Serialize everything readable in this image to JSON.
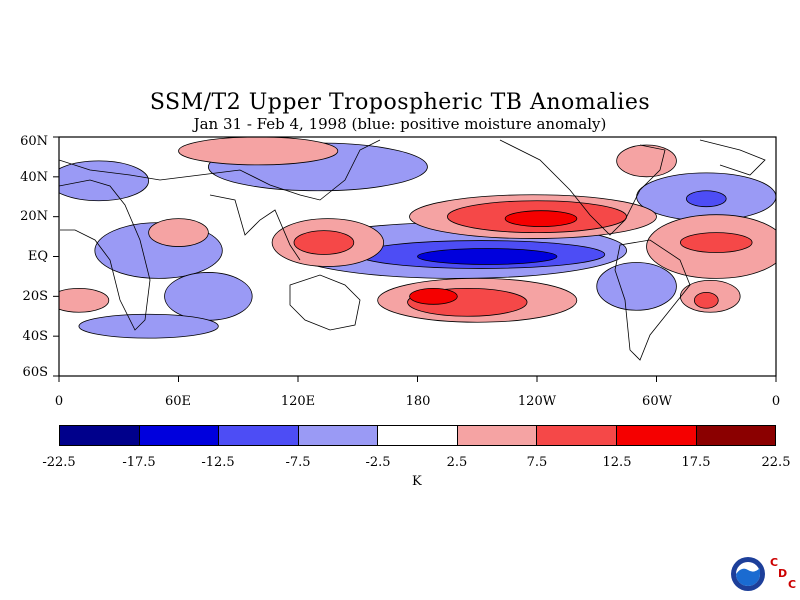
{
  "title": "SSM/T2 Upper Tropospheric TB Anomalies",
  "subtitle": "Jan 31 - Feb 4, 1998 (blue: positive moisture anomaly)",
  "lat_labels": [
    "60N",
    "40N",
    "20N",
    "EQ",
    "20S",
    "40S",
    "60S"
  ],
  "lon_labels": [
    "0",
    "60E",
    "120E",
    "180",
    "120W",
    "60W",
    "0"
  ],
  "colorbar": {
    "labels": [
      "-22.5",
      "-17.5",
      "-12.5",
      "-7.5",
      "-2.5",
      "2.5",
      "7.5",
      "12.5",
      "17.5",
      "22.5"
    ],
    "colors": [
      "#00008b",
      "#0000dd",
      "#4d4df5",
      "#9a9af5",
      "#ffffff",
      "#f5a3a3",
      "#f54848",
      "#f50000",
      "#8b0000"
    ],
    "unit": "K"
  },
  "logo": {
    "icon": "noaa-icon",
    "letters": [
      "C",
      "D",
      "C"
    ]
  },
  "map_regions": [
    {
      "value": -7.5,
      "lon": 200,
      "lat": 3,
      "dlon": 85,
      "dlat": 14
    },
    {
      "value": -12.5,
      "lon": 212,
      "lat": 1,
      "dlon": 62,
      "dlat": 7
    },
    {
      "value": -17.5,
      "lon": 215,
      "lat": 0,
      "dlon": 35,
      "dlat": 4
    },
    {
      "value": -7.5,
      "lon": 50,
      "lat": 3,
      "dlon": 32,
      "dlat": 14
    },
    {
      "value": -7.5,
      "lon": 20,
      "lat": 38,
      "dlon": 25,
      "dlat": 10
    },
    {
      "value": -7.5,
      "lon": 130,
      "lat": 45,
      "dlon": 55,
      "dlat": 12
    },
    {
      "value": -7.5,
      "lon": 75,
      "lat": -20,
      "dlon": 22,
      "dlat": 12
    },
    {
      "value": -7.5,
      "lon": 290,
      "lat": -15,
      "dlon": 20,
      "dlat": 12
    },
    {
      "value": -7.5,
      "lon": 325,
      "lat": 30,
      "dlon": 35,
      "dlat": 12
    },
    {
      "value": -12.5,
      "lon": 325,
      "lat": 29,
      "dlon": 10,
      "dlat": 4
    },
    {
      "value": -7.5,
      "lon": 45,
      "lat": -35,
      "dlon": 35,
      "dlat": 6
    },
    {
      "value": 2.5,
      "lon": 238,
      "lat": 20,
      "dlon": 62,
      "dlat": 11
    },
    {
      "value": 7.5,
      "lon": 240,
      "lat": 20,
      "dlon": 45,
      "dlat": 8
    },
    {
      "value": 12.5,
      "lon": 242,
      "lat": 19,
      "dlon": 18,
      "dlat": 4
    },
    {
      "value": 2.5,
      "lon": 135,
      "lat": 7,
      "dlon": 28,
      "dlat": 12
    },
    {
      "value": 7.5,
      "lon": 133,
      "lat": 7,
      "dlon": 15,
      "dlat": 6
    },
    {
      "value": 2.5,
      "lon": 210,
      "lat": -22,
      "dlon": 50,
      "dlat": 11
    },
    {
      "value": 7.5,
      "lon": 205,
      "lat": -23,
      "dlon": 30,
      "dlat": 7
    },
    {
      "value": 12.5,
      "lon": 188,
      "lat": -20,
      "dlon": 12,
      "dlat": 4
    },
    {
      "value": 2.5,
      "lon": 330,
      "lat": 5,
      "dlon": 35,
      "dlat": 16
    },
    {
      "value": 7.5,
      "lon": 330,
      "lat": 7,
      "dlon": 18,
      "dlat": 5
    },
    {
      "value": 2.5,
      "lon": 327,
      "lat": -20,
      "dlon": 15,
      "dlat": 8
    },
    {
      "value": 7.5,
      "lon": 325,
      "lat": -22,
      "dlon": 6,
      "dlat": 4
    },
    {
      "value": 2.5,
      "lon": 100,
      "lat": 53,
      "dlon": 40,
      "dlat": 7
    },
    {
      "value": 2.5,
      "lon": 10,
      "lat": -22,
      "dlon": 15,
      "dlat": 6
    },
    {
      "value": 2.5,
      "lon": 60,
      "lat": 12,
      "dlon": 15,
      "dlat": 7
    },
    {
      "value": 2.5,
      "lon": 295,
      "lat": 48,
      "dlon": 15,
      "dlat": 8
    }
  ]
}
